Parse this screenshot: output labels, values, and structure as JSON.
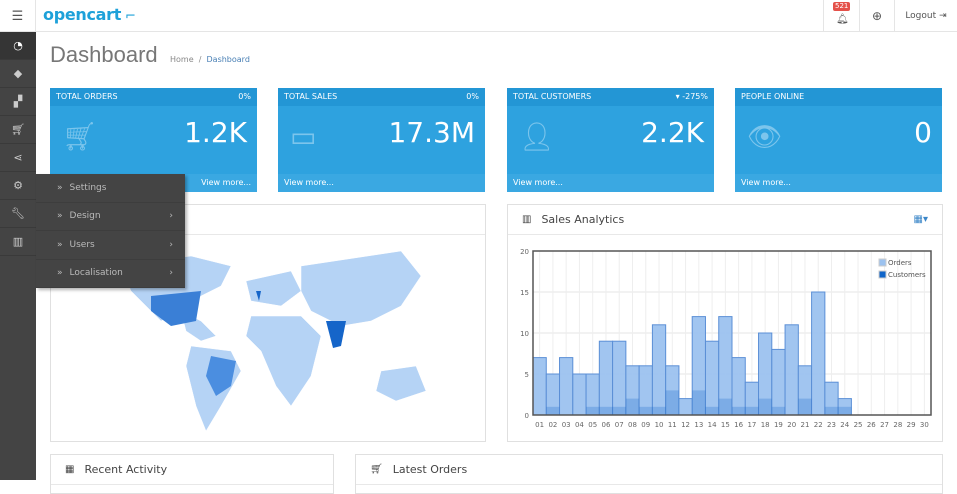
{
  "header": {
    "logo": "opencart",
    "notification_count": "521",
    "logout_label": "Logout"
  },
  "page": {
    "title": "Dashboard",
    "breadcrumb": [
      "Home",
      "Dashboard"
    ]
  },
  "sidebar": {
    "icons": [
      "dashboard-icon",
      "tag-icon",
      "puzzle-icon",
      "cart-icon",
      "share-icon",
      "gear-icon",
      "wrench-icon",
      "bar-chart-icon"
    ]
  },
  "flyout": {
    "items": [
      {
        "label": "Settings",
        "has_sub": false
      },
      {
        "label": "Design",
        "has_sub": true
      },
      {
        "label": "Users",
        "has_sub": true
      },
      {
        "label": "Localisation",
        "has_sub": true
      }
    ]
  },
  "cards": [
    {
      "title": "TOTAL ORDERS",
      "change": "0%",
      "value": "1.2K",
      "more": "View more..."
    },
    {
      "title": "TOTAL SALES",
      "change": "0%",
      "value": "17.3M",
      "more": "View more..."
    },
    {
      "title": "TOTAL CUSTOMERS",
      "change": "-275%",
      "value": "2.2K",
      "more": "View more..."
    },
    {
      "title": "PEOPLE ONLINE",
      "change": "",
      "value": "0",
      "more": "View more..."
    }
  ],
  "analytics": {
    "title": "Sales Analytics"
  },
  "bottom": {
    "recent_activity": "Recent Activity",
    "latest_orders": "Latest Orders"
  },
  "chart_data": {
    "type": "bar",
    "categories": [
      "01",
      "02",
      "03",
      "04",
      "05",
      "06",
      "07",
      "08",
      "09",
      "10",
      "11",
      "12",
      "13",
      "14",
      "15",
      "16",
      "17",
      "18",
      "19",
      "20",
      "21",
      "22",
      "23",
      "24",
      "25",
      "26",
      "27",
      "28",
      "29",
      "30"
    ],
    "series": [
      {
        "name": "Orders",
        "color": "#9cc2ef",
        "values": [
          7,
          5,
          7,
          5,
          5,
          9,
          9,
          6,
          6,
          11,
          6,
          2,
          12,
          9,
          12,
          7,
          4,
          10,
          8,
          11,
          6,
          15,
          4,
          2,
          0,
          0,
          0,
          0,
          0,
          0
        ]
      },
      {
        "name": "Customers",
        "color": "#1065c9",
        "values": [
          0,
          1,
          0,
          0,
          1,
          1,
          1,
          2,
          1,
          1,
          3,
          0,
          3,
          1,
          2,
          1,
          1,
          2,
          1,
          0,
          2,
          0,
          1,
          1,
          0,
          0,
          0,
          0,
          0,
          0
        ]
      }
    ],
    "yticks": [
      0,
      5,
      10,
      15,
      20
    ],
    "ylim": [
      0,
      20
    ],
    "grid": true,
    "legend": "top-right"
  }
}
